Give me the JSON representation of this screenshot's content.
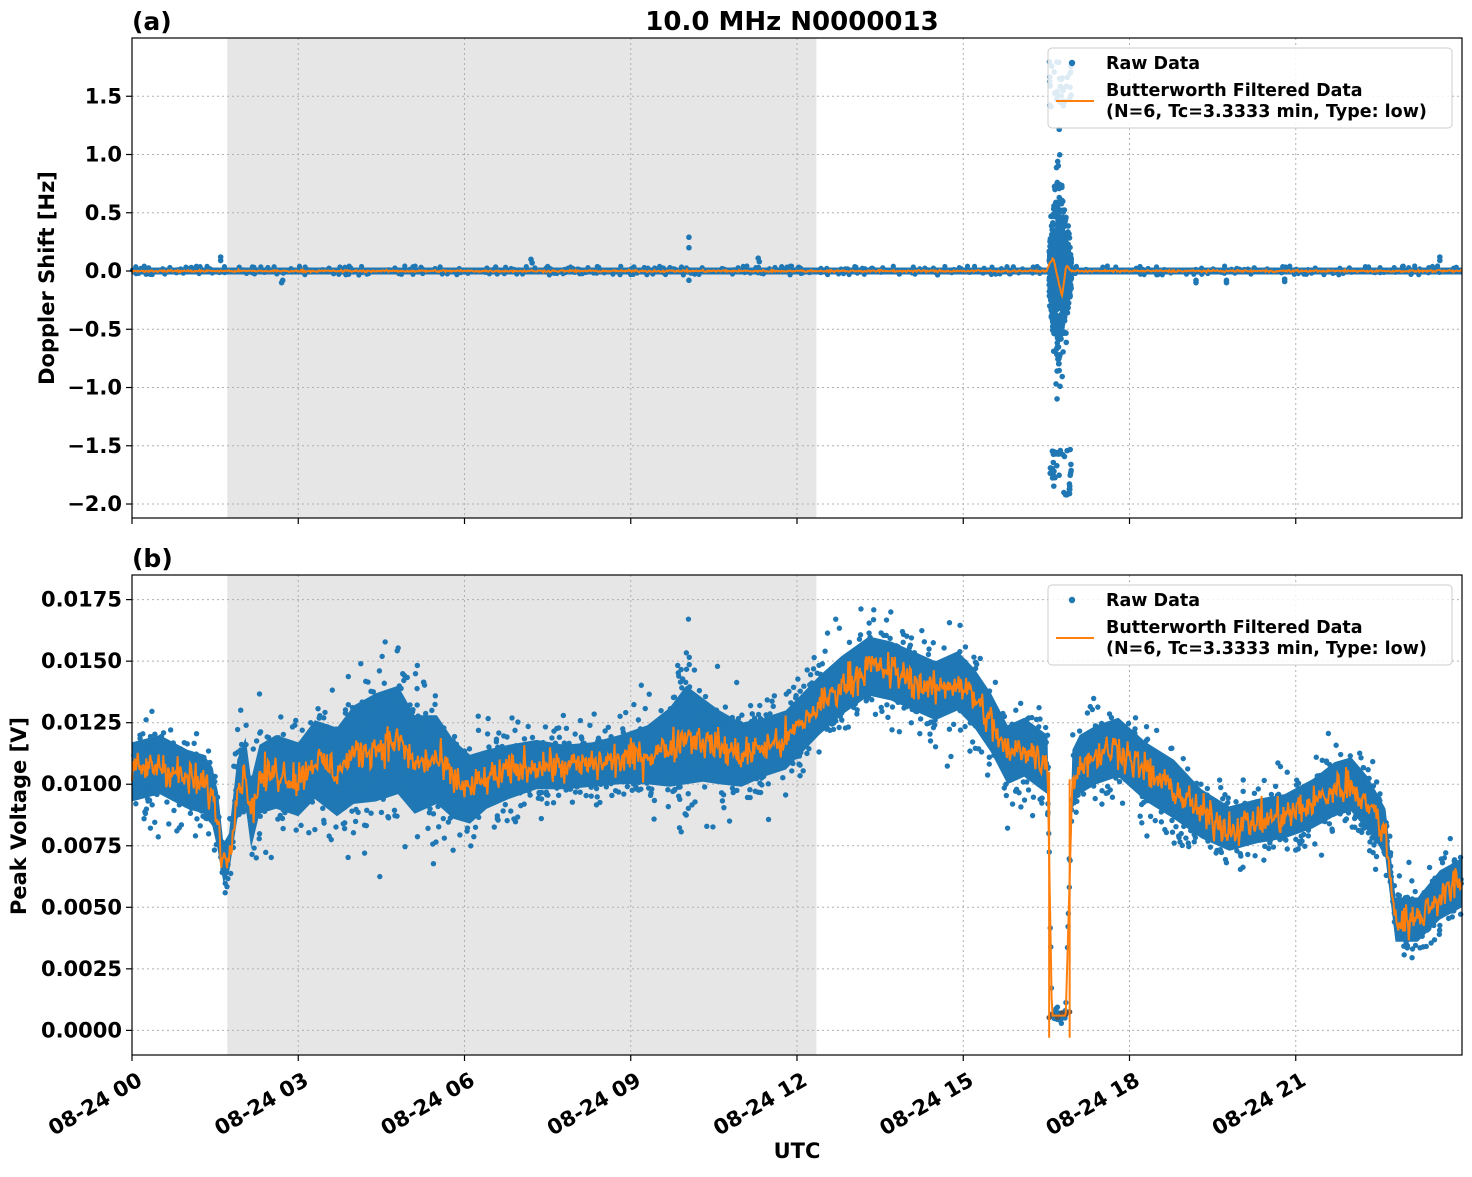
{
  "title": "10.0 MHz N0000013",
  "xlabel": "UTC",
  "x_tick_labels": [
    "08-24 00",
    "08-24 03",
    "08-24 06",
    "08-24 09",
    "08-24 12",
    "08-24 15",
    "08-24 18",
    "08-24 21"
  ],
  "legend": {
    "raw_label": "Raw Data",
    "filtered_label_line1": "Butterworth Filtered Data",
    "filtered_label_line2": "(N=6, Tc=3.3333 min, Type: low)"
  },
  "colors": {
    "raw": "#1f77b4",
    "filtered": "#ff7f0e",
    "night_shading": "#e6e6e6",
    "grid": "#b0b0b0"
  },
  "chart_data": [
    {
      "panel": "(a)",
      "type": "scatter",
      "ylabel": "Doppler Shift [Hz]",
      "xlim_hours": [
        0,
        24
      ],
      "ylim": [
        -2.12,
        2.0
      ],
      "y_ticks": [
        -2.0,
        -1.5,
        -1.0,
        -0.5,
        0.0,
        0.5,
        1.0,
        1.5
      ],
      "y_tick_labels": [
        "−2.0",
        "−1.5",
        "−1.0",
        "−0.5",
        "0.0",
        "0.5",
        "1.0",
        "1.5"
      ],
      "night_span_hours": [
        1.72,
        12.35
      ],
      "grid": true,
      "legend_position": "upper right",
      "series": [
        {
          "name": "Raw Data",
          "style": "points",
          "baseline_band": [
            -0.03,
            0.03
          ],
          "outliers": [
            {
              "x": 1.6,
              "y": 0.12
            },
            {
              "x": 1.6,
              "y": 0.09
            },
            {
              "x": 2.7,
              "y": -0.1
            },
            {
              "x": 2.72,
              "y": -0.08
            },
            {
              "x": 7.2,
              "y": 0.1
            },
            {
              "x": 7.22,
              "y": 0.07
            },
            {
              "x": 10.05,
              "y": 0.29
            },
            {
              "x": 10.05,
              "y": 0.2
            },
            {
              "x": 10.05,
              "y": -0.08
            },
            {
              "x": 11.3,
              "y": 0.11
            },
            {
              "x": 11.32,
              "y": 0.08
            },
            {
              "x": 19.2,
              "y": -0.1
            },
            {
              "x": 19.2,
              "y": -0.08
            },
            {
              "x": 19.75,
              "y": -0.1
            },
            {
              "x": 19.75,
              "y": -0.08
            },
            {
              "x": 20.8,
              "y": -0.09
            },
            {
              "x": 20.8,
              "y": -0.07
            },
            {
              "x": 23.6,
              "y": 0.12
            },
            {
              "x": 23.6,
              "y": 0.09
            }
          ],
          "burst_span_hours": [
            16.55,
            16.95
          ],
          "burst_range": [
            -1.93,
            1.8
          ]
        },
        {
          "name": "Butterworth Filtered Data (N=6, Tc=3.3333 min, Type: low)",
          "style": "line",
          "x": [
            0,
            16.5,
            16.62,
            16.7,
            16.78,
            16.86,
            16.95,
            24
          ],
          "y": [
            0.0,
            0.0,
            0.12,
            -0.05,
            -0.22,
            0.05,
            0.0,
            0.0
          ]
        }
      ]
    },
    {
      "panel": "(b)",
      "type": "scatter",
      "ylabel": "Peak Voltage [V]",
      "xlim_hours": [
        0,
        24
      ],
      "ylim": [
        -0.001,
        0.0185
      ],
      "y_ticks": [
        0.0,
        0.0025,
        0.005,
        0.0075,
        0.01,
        0.0125,
        0.015,
        0.0175
      ],
      "y_tick_labels": [
        "0.0000",
        "0.0025",
        "0.0050",
        "0.0075",
        "0.0100",
        "0.0125",
        "0.0150",
        "0.0175"
      ],
      "night_span_hours": [
        1.72,
        12.35
      ],
      "grid": true,
      "legend_position": "upper right",
      "series": [
        {
          "name": "Raw Data",
          "style": "points_band",
          "x": [
            0,
            0.5,
            1.0,
            1.3,
            1.45,
            1.55,
            1.65,
            1.75,
            1.9,
            2.05,
            2.15,
            2.3,
            2.6,
            3.0,
            3.3,
            3.7,
            4.0,
            4.4,
            4.8,
            5.1,
            5.5,
            5.8,
            6.1,
            6.4,
            6.8,
            7.3,
            7.8,
            8.3,
            8.8,
            9.3,
            9.7,
            10.0,
            10.3,
            10.6,
            11.0,
            11.4,
            11.8,
            12.1,
            12.4,
            12.8,
            13.3,
            13.7,
            14.1,
            14.5,
            14.9,
            15.2,
            15.5,
            15.8,
            16.1,
            16.4,
            16.52,
            16.6,
            16.85,
            16.97,
            17.1,
            17.4,
            17.8,
            18.3,
            18.8,
            19.3,
            19.8,
            20.3,
            20.8,
            21.3,
            21.7,
            22.0,
            22.3,
            22.5,
            22.62,
            22.8,
            23.2,
            23.6,
            24.0
          ],
          "y": [
            0.0105,
            0.0108,
            0.0102,
            0.01,
            0.0095,
            0.0085,
            0.0068,
            0.0072,
            0.0098,
            0.0105,
            0.0088,
            0.0102,
            0.0105,
            0.0102,
            0.011,
            0.0105,
            0.0112,
            0.0115,
            0.0118,
            0.0108,
            0.011,
            0.0102,
            0.0098,
            0.0102,
            0.0105,
            0.0108,
            0.0107,
            0.0108,
            0.011,
            0.0112,
            0.0115,
            0.012,
            0.0118,
            0.0115,
            0.0112,
            0.0115,
            0.0118,
            0.0125,
            0.0132,
            0.014,
            0.0148,
            0.0146,
            0.0142,
            0.0138,
            0.0142,
            0.0135,
            0.0125,
            0.0112,
            0.0115,
            0.011,
            0.0108,
            0.0006,
            0.0006,
            0.0102,
            0.0108,
            0.0112,
            0.0115,
            0.0105,
            0.0098,
            0.0088,
            0.0082,
            0.0085,
            0.0087,
            0.0092,
            0.0098,
            0.01,
            0.0092,
            0.0085,
            0.008,
            0.0045,
            0.0045,
            0.0055,
            0.006
          ],
          "band_halfwidth": [
            0.0012,
            0.0012,
            0.0012,
            0.0012,
            0.0012,
            0.0012,
            0.0008,
            0.0008,
            0.0012,
            0.0014,
            0.0014,
            0.0014,
            0.0015,
            0.0015,
            0.0016,
            0.0018,
            0.002,
            0.0022,
            0.0022,
            0.002,
            0.0018,
            0.0016,
            0.0014,
            0.0012,
            0.0011,
            0.001,
            0.0009,
            0.0009,
            0.001,
            0.0012,
            0.0016,
            0.002,
            0.0017,
            0.0015,
            0.0013,
            0.0012,
            0.0012,
            0.0012,
            0.0012,
            0.0012,
            0.0012,
            0.0012,
            0.0012,
            0.0012,
            0.0012,
            0.0012,
            0.0012,
            0.0012,
            0.0012,
            0.0012,
            0.0012,
            0.0002,
            0.0002,
            0.0012,
            0.0012,
            0.0012,
            0.0012,
            0.0012,
            0.0012,
            0.001,
            0.0009,
            0.0009,
            0.0009,
            0.001,
            0.0011,
            0.0011,
            0.0011,
            0.001,
            0.001,
            0.0009,
            0.0009,
            0.001,
            0.001
          ]
        },
        {
          "name": "Butterworth Filtered Data (N=6, Tc=3.3333 min, Type: low)",
          "style": "line",
          "x": [
            0,
            0.5,
            1.0,
            1.3,
            1.45,
            1.55,
            1.65,
            1.75,
            1.9,
            2.05,
            2.15,
            2.3,
            2.6,
            3.0,
            3.3,
            3.7,
            4.0,
            4.4,
            4.8,
            5.1,
            5.5,
            5.8,
            6.1,
            6.4,
            6.8,
            7.3,
            7.8,
            8.3,
            8.8,
            9.3,
            9.7,
            10.0,
            10.3,
            10.6,
            11.0,
            11.4,
            11.8,
            12.1,
            12.4,
            12.8,
            13.3,
            13.7,
            14.1,
            14.5,
            14.9,
            15.2,
            15.5,
            15.8,
            16.1,
            16.4,
            16.52,
            16.6,
            16.85,
            16.97,
            17.1,
            17.4,
            17.8,
            18.3,
            18.8,
            19.3,
            19.8,
            20.3,
            20.8,
            21.3,
            21.7,
            22.0,
            22.3,
            22.5,
            22.62,
            22.8,
            23.2,
            23.6,
            24.0
          ],
          "y": [
            0.0105,
            0.0108,
            0.0102,
            0.01,
            0.0095,
            0.0085,
            0.0068,
            0.0072,
            0.0098,
            0.0105,
            0.0088,
            0.0102,
            0.0105,
            0.0102,
            0.011,
            0.0105,
            0.0112,
            0.0115,
            0.0118,
            0.0108,
            0.011,
            0.0102,
            0.0098,
            0.0102,
            0.0105,
            0.0108,
            0.0107,
            0.0108,
            0.011,
            0.0112,
            0.0115,
            0.012,
            0.0118,
            0.0115,
            0.0112,
            0.0115,
            0.0118,
            0.0125,
            0.0132,
            0.014,
            0.0148,
            0.0146,
            0.0142,
            0.0138,
            0.0142,
            0.0135,
            0.0125,
            0.0112,
            0.0115,
            0.011,
            0.0108,
            0.0006,
            0.0006,
            0.0102,
            0.0108,
            0.0112,
            0.0115,
            0.0105,
            0.0098,
            0.0088,
            0.0082,
            0.0085,
            0.0087,
            0.0092,
            0.0098,
            0.01,
            0.0092,
            0.0085,
            0.008,
            0.0045,
            0.0045,
            0.0055,
            0.006
          ]
        }
      ]
    }
  ]
}
